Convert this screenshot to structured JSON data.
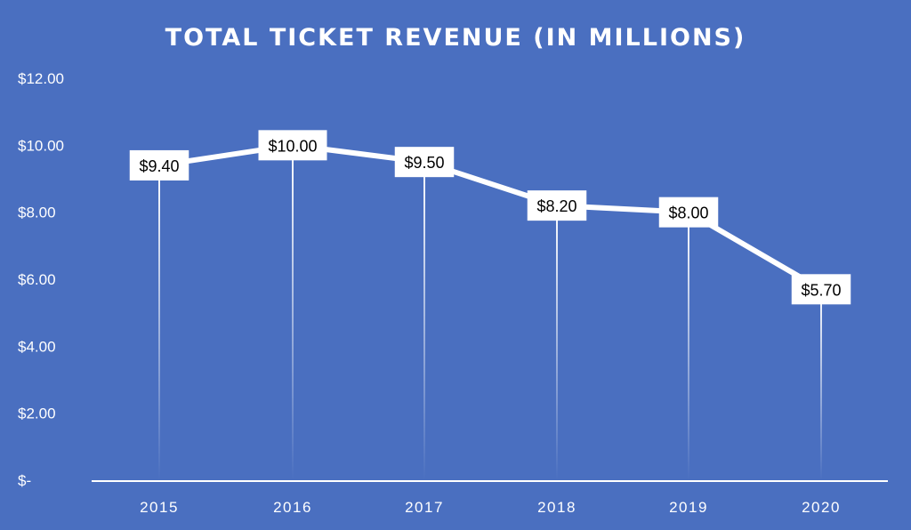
{
  "chart_data": {
    "type": "line",
    "title": "TOTAL TICKET REVENUE (IN MILLIONS)",
    "categories": [
      "2015",
      "2016",
      "2017",
      "2018",
      "2019",
      "2020"
    ],
    "values": [
      9.4,
      10.0,
      9.5,
      8.2,
      8.0,
      5.7
    ],
    "data_labels": [
      "$9.40",
      "$10.00",
      "$9.50",
      "$8.20",
      "$8.00",
      "$5.70"
    ],
    "y_ticks": [
      0,
      2,
      4,
      6,
      8,
      10,
      12
    ],
    "y_tick_labels": [
      "$-",
      "$2.00",
      "$4.00",
      "$6.00",
      "$8.00",
      "$10.00",
      "$12.00"
    ],
    "ylim": [
      0,
      12
    ],
    "xlabel": "",
    "ylabel": "",
    "grid": false,
    "drop_lines": true,
    "colors": {
      "background": "#4a6fc0",
      "line": "#ffffff",
      "label_box": "#ffffff"
    }
  }
}
